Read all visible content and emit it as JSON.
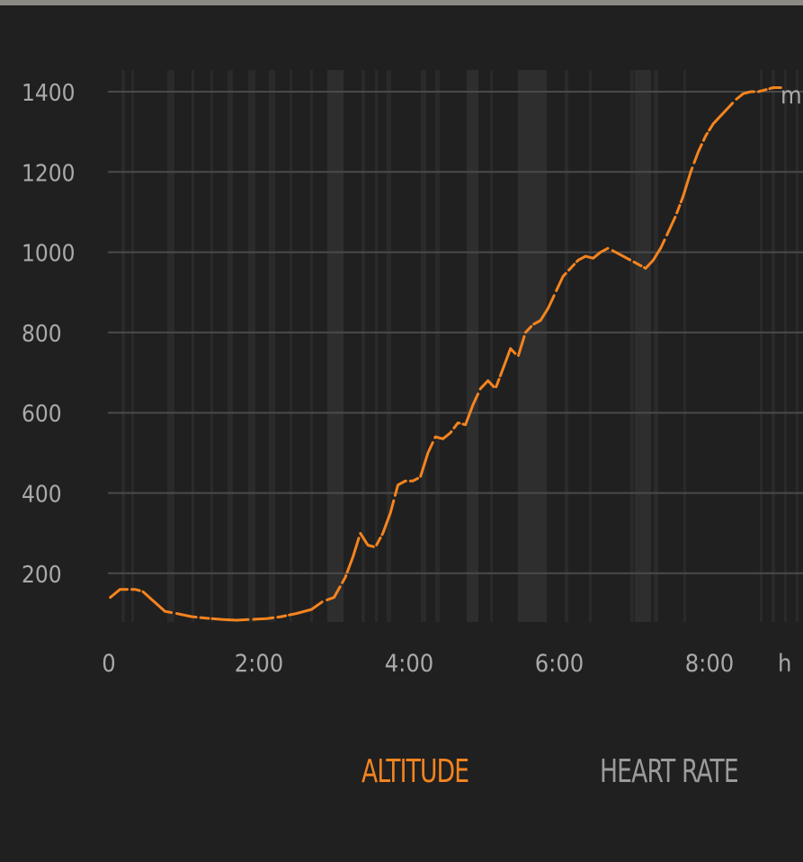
{
  "chart_data": {
    "type": "line",
    "title": "",
    "xlabel": "",
    "ylabel": "",
    "x_unit": "h",
    "y_unit": "m",
    "xlim": [
      0,
      9.0
    ],
    "ylim": [
      80,
      1450
    ],
    "y_ticks": [
      200,
      400,
      600,
      800,
      1000,
      1200,
      1400
    ],
    "y_tick_labels": [
      "200",
      "400",
      "600",
      "800",
      "1000",
      "1200",
      "1400"
    ],
    "x_ticks": [
      0,
      2,
      4,
      6,
      8
    ],
    "x_tick_labels": [
      "0",
      "2:00",
      "4:00",
      "6:00",
      "8:00"
    ],
    "grid": true,
    "series": [
      {
        "color": "#f5841f",
        "x": [
          0.02,
          0.15,
          0.35,
          0.45,
          0.6,
          0.75,
          0.9,
          1.1,
          1.3,
          1.5,
          1.7,
          1.9,
          2.1,
          2.3,
          2.5,
          2.7,
          2.85,
          3.0,
          3.15,
          3.25,
          3.35,
          3.45,
          3.55,
          3.65,
          3.75,
          3.85,
          3.95,
          4.05,
          4.15,
          4.25,
          4.35,
          4.45,
          4.55,
          4.65,
          4.75,
          4.85,
          4.95,
          5.05,
          5.15,
          5.25,
          5.35,
          5.45,
          5.55,
          5.65,
          5.75,
          5.85,
          5.95,
          6.05,
          6.15,
          6.25,
          6.35,
          6.45,
          6.55,
          6.65,
          6.75,
          6.85,
          6.95,
          7.05,
          7.15,
          7.25,
          7.35,
          7.45,
          7.55,
          7.65,
          7.75,
          7.85,
          7.95,
          8.05,
          8.15,
          8.25,
          8.35,
          8.45,
          8.55,
          8.65,
          8.75,
          8.85,
          8.95
        ],
        "values": [
          140,
          160,
          160,
          155,
          130,
          105,
          100,
          92,
          88,
          85,
          83,
          85,
          87,
          92,
          100,
          110,
          130,
          140,
          190,
          240,
          300,
          270,
          265,
          300,
          350,
          420,
          430,
          430,
          440,
          500,
          540,
          535,
          550,
          575,
          570,
          620,
          660,
          680,
          660,
          710,
          760,
          740,
          800,
          820,
          830,
          860,
          900,
          940,
          960,
          980,
          990,
          985,
          1000,
          1010,
          1000,
          990,
          980,
          970,
          960,
          980,
          1010,
          1050,
          1090,
          1140,
          1200,
          1250,
          1290,
          1320,
          1340,
          1360,
          1380,
          1395,
          1400,
          1400,
          1405,
          1410,
          1410
        ]
      }
    ]
  },
  "tabs": {
    "altitude": "ALTITUDE",
    "heart_rate": "HEART RATE"
  },
  "colors": {
    "background": "#202020",
    "accent": "#f5841f",
    "grid": "#4a4a4a",
    "band": "#2c2c2c",
    "tick_text": "#a9a9a9"
  }
}
